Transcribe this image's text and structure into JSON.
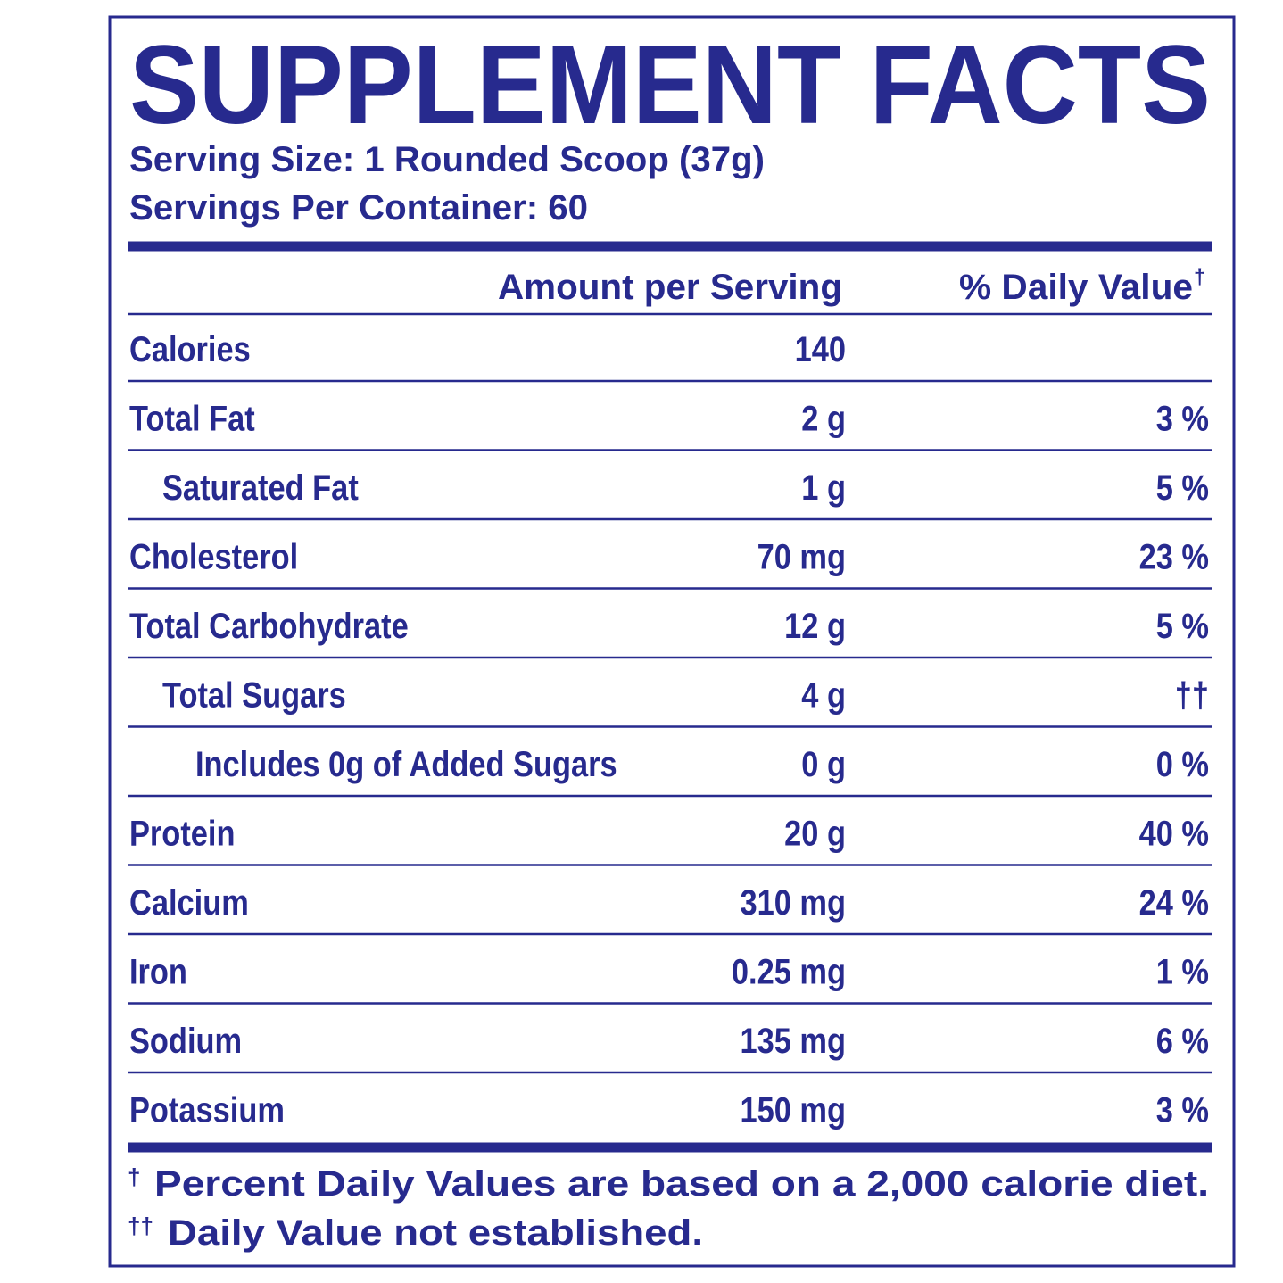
{
  "title": "SUPPLEMENT FACTS",
  "serving_size": "Serving Size: 1 Rounded Scoop (37g)",
  "servings_per_container": "Servings Per Container: 60",
  "header": {
    "amount": "Amount per Serving",
    "daily_value": "% Daily Value",
    "daily_value_mark": "†"
  },
  "nutrients": [
    {
      "name": "Calories",
      "amount": "140"
    },
    {
      "name": "Total Fat",
      "amount": "2 g",
      "dv": "3 %",
      "sub": [
        {
          "name": "Saturated Fat",
          "amount": "1 g",
          "dv": "5 %"
        }
      ]
    },
    {
      "name": "Cholesterol",
      "amount": "70 mg",
      "dv": "23 %"
    },
    {
      "name": "Total Carbohydrate",
      "amount": "12 g",
      "dv": "5 %",
      "sub": [
        {
          "name": "Total Sugars",
          "amount": "4 g",
          "dv": "††",
          "sub": [
            {
              "name": "Includes 0g of Added Sugars",
              "amount": "0 g",
              "dv": "0 %"
            }
          ]
        }
      ]
    },
    {
      "name": "Protein",
      "amount": "20 g",
      "dv": "40 %"
    },
    {
      "name": "Calcium",
      "amount": "310 mg",
      "dv": "24 %"
    },
    {
      "name": "Iron",
      "amount": "0.25 mg",
      "dv": "1 %"
    },
    {
      "name": "Sodium",
      "amount": "135 mg",
      "dv": "6 %"
    },
    {
      "name": "Potassium",
      "amount": "150 mg",
      "dv": "3 %"
    }
  ],
  "footnotes": [
    {
      "mark": "†",
      "text": "Percent Daily Values are based on a 2,000 calorie diet."
    },
    {
      "mark": "††",
      "text": "Daily Value not established."
    }
  ]
}
